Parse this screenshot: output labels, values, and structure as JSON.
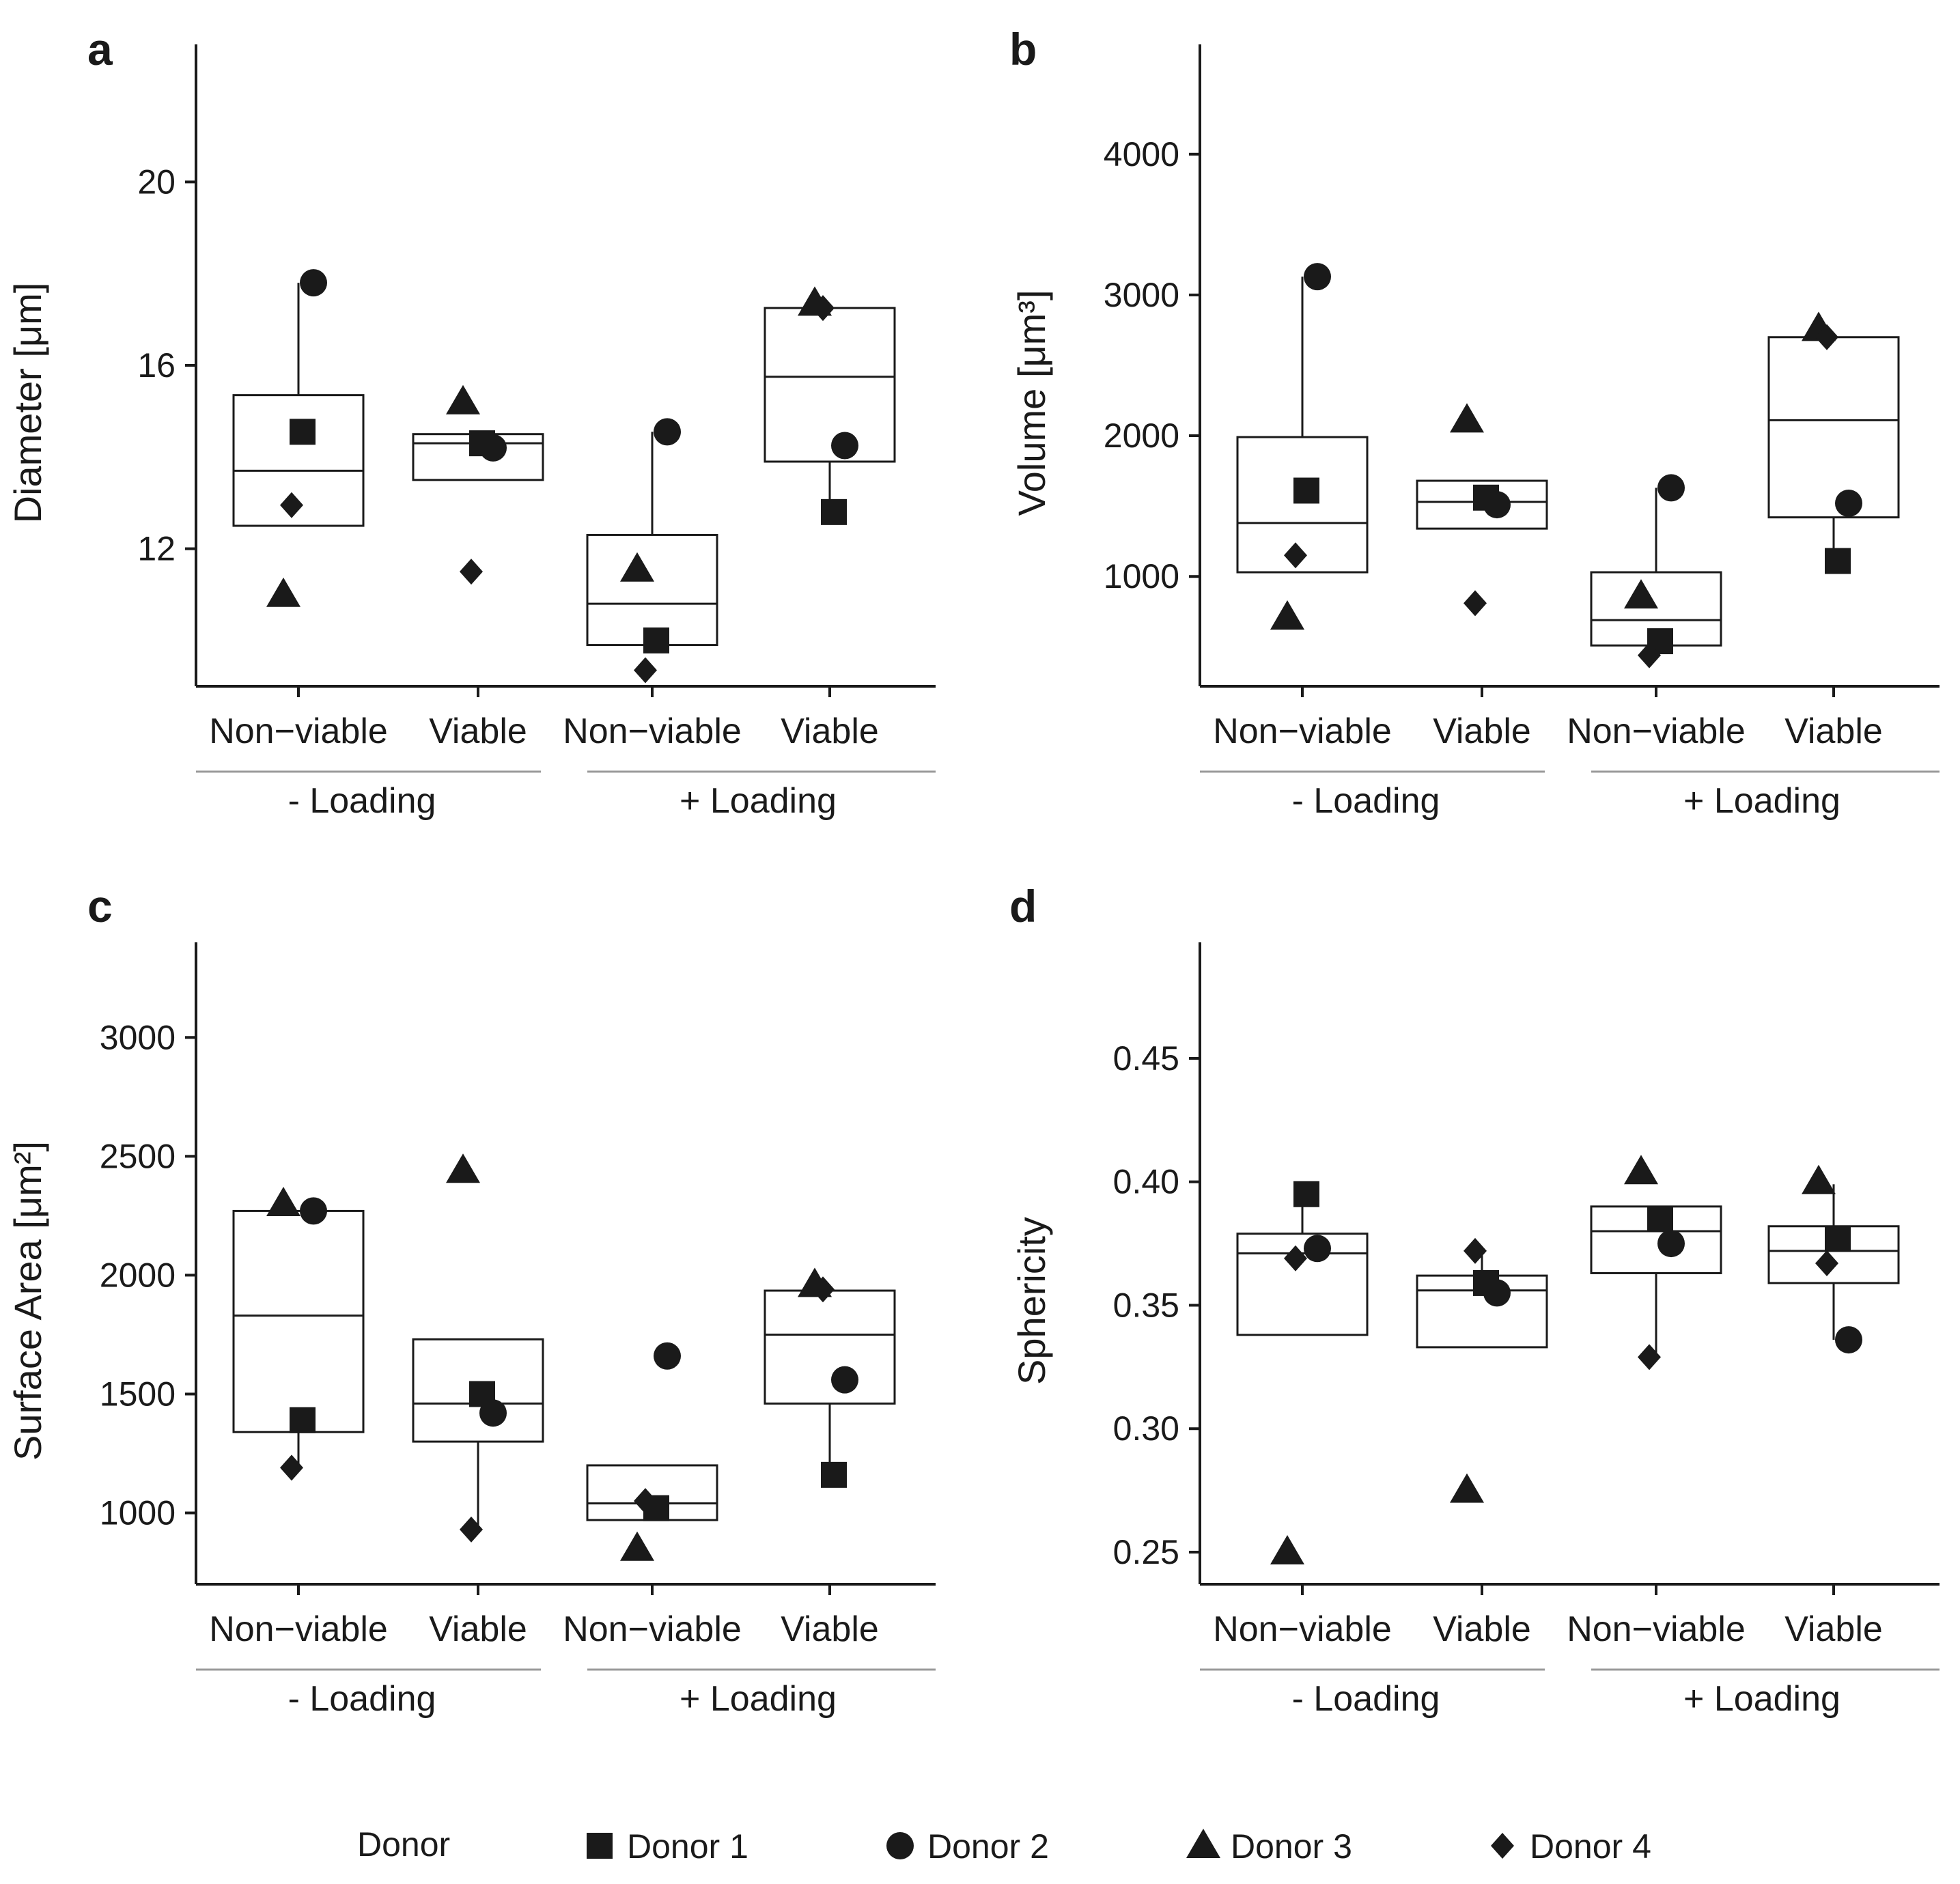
{
  "figure": {
    "legend": {
      "title": "Donor",
      "entries": [
        {
          "name": "Donor 1",
          "shape": "square"
        },
        {
          "name": "Donor 2",
          "shape": "circle"
        },
        {
          "name": "Donor 3",
          "shape": "triangle"
        },
        {
          "name": "Donor 4",
          "shape": "diamond"
        }
      ]
    }
  },
  "chart_data": [
    {
      "panel": "a",
      "type": "box",
      "ylabel": "Diameter [μm]",
      "ylim": [
        9.0,
        23.0
      ],
      "yticks": [
        12,
        16,
        20
      ],
      "categories": [
        "Non−viable",
        "Viable",
        "Non−viable",
        "Viable"
      ],
      "groups": [
        {
          "label": "- Loading",
          "span": [
            0,
            1
          ]
        },
        {
          "label": "+ Loading",
          "span": [
            2,
            3
          ]
        }
      ],
      "boxes": [
        {
          "q1": 12.5,
          "median": 13.7,
          "q3": 15.35,
          "whisker_low": 12.5,
          "whisker_high": 17.8
        },
        {
          "q1": 13.5,
          "median": 14.3,
          "q3": 14.5,
          "whisker_low": 13.5,
          "whisker_high": 14.5
        },
        {
          "q1": 9.9,
          "median": 10.8,
          "q3": 12.3,
          "whisker_low": 9.9,
          "whisker_high": 14.55
        },
        {
          "q1": 13.9,
          "median": 15.75,
          "q3": 17.25,
          "whisker_low": 12.8,
          "whisker_high": 17.25
        }
      ],
      "points": [
        [
          {
            "donor": "Donor 1",
            "value": 14.55
          },
          {
            "donor": "Donor 2",
            "value": 17.8
          },
          {
            "donor": "Donor 3",
            "value": 11.0
          },
          {
            "donor": "Donor 4",
            "value": 12.95
          }
        ],
        [
          {
            "donor": "Donor 1",
            "value": 14.3
          },
          {
            "donor": "Donor 2",
            "value": 14.2
          },
          {
            "donor": "Donor 3",
            "value": 15.2
          },
          {
            "donor": "Donor 4",
            "value": 11.5
          }
        ],
        [
          {
            "donor": "Donor 1",
            "value": 10.0
          },
          {
            "donor": "Donor 2",
            "value": 14.55
          },
          {
            "donor": "Donor 3",
            "value": 11.55
          },
          {
            "donor": "Donor 4",
            "value": 9.35
          }
        ],
        [
          {
            "donor": "Donor 1",
            "value": 12.8
          },
          {
            "donor": "Donor 2",
            "value": 14.25
          },
          {
            "donor": "Donor 3",
            "value": 17.35
          },
          {
            "donor": "Donor 4",
            "value": 17.25
          }
        ]
      ]
    },
    {
      "panel": "b",
      "type": "box",
      "ylabel": "Volume [μm³]",
      "ylim": [
        220,
        4780
      ],
      "yticks": [
        1000,
        2000,
        3000,
        4000
      ],
      "categories": [
        "Non−viable",
        "Viable",
        "Non−viable",
        "Viable"
      ],
      "groups": [
        {
          "label": "- Loading",
          "span": [
            0,
            1
          ]
        },
        {
          "label": "+ Loading",
          "span": [
            2,
            3
          ]
        }
      ],
      "boxes": [
        {
          "q1": 1030,
          "median": 1380,
          "q3": 1990,
          "whisker_low": 1030,
          "whisker_high": 3130
        },
        {
          "q1": 1340,
          "median": 1530,
          "q3": 1680,
          "whisker_low": 1340,
          "whisker_high": 1680
        },
        {
          "q1": 510,
          "median": 690,
          "q3": 1030,
          "whisker_low": 510,
          "whisker_high": 1630
        },
        {
          "q1": 1420,
          "median": 2110,
          "q3": 2700,
          "whisker_low": 1110,
          "whisker_high": 2700
        }
      ],
      "points": [
        [
          {
            "donor": "Donor 1",
            "value": 1610
          },
          {
            "donor": "Donor 2",
            "value": 3130
          },
          {
            "donor": "Donor 3",
            "value": 710
          },
          {
            "donor": "Donor 4",
            "value": 1150
          }
        ],
        [
          {
            "donor": "Donor 1",
            "value": 1560
          },
          {
            "donor": "Donor 2",
            "value": 1510
          },
          {
            "donor": "Donor 3",
            "value": 2110
          },
          {
            "donor": "Donor 4",
            "value": 810
          }
        ],
        [
          {
            "donor": "Donor 1",
            "value": 540
          },
          {
            "donor": "Donor 2",
            "value": 1630
          },
          {
            "donor": "Donor 3",
            "value": 860
          },
          {
            "donor": "Donor 4",
            "value": 440
          }
        ],
        [
          {
            "donor": "Donor 1",
            "value": 1110
          },
          {
            "donor": "Donor 2",
            "value": 1520
          },
          {
            "donor": "Donor 3",
            "value": 2760
          },
          {
            "donor": "Donor 4",
            "value": 2700
          }
        ]
      ]
    },
    {
      "panel": "c",
      "type": "box",
      "ylabel": "Surface Area [μm²]",
      "ylim": [
        700,
        3400
      ],
      "yticks": [
        1000,
        1500,
        2000,
        2500,
        3000
      ],
      "categories": [
        "Non−viable",
        "Viable",
        "Non−viable",
        "Viable"
      ],
      "groups": [
        {
          "label": "- Loading",
          "span": [
            0,
            1
          ]
        },
        {
          "label": "+ Loading",
          "span": [
            2,
            3
          ]
        }
      ],
      "boxes": [
        {
          "q1": 1340,
          "median": 1830,
          "q3": 2270,
          "whisker_low": 1190,
          "whisker_high": 2270
        },
        {
          "q1": 1300,
          "median": 1460,
          "q3": 1730,
          "whisker_low": 930,
          "whisker_high": 1730
        },
        {
          "q1": 970,
          "median": 1040,
          "q3": 1200,
          "whisker_low": 970,
          "whisker_high": 1200
        },
        {
          "q1": 1460,
          "median": 1750,
          "q3": 1935,
          "whisker_low": 1160,
          "whisker_high": 1935
        }
      ],
      "points": [
        [
          {
            "donor": "Donor 1",
            "value": 1390
          },
          {
            "donor": "Donor 2",
            "value": 2270
          },
          {
            "donor": "Donor 3",
            "value": 2300
          },
          {
            "donor": "Donor 4",
            "value": 1190
          }
        ],
        [
          {
            "donor": "Donor 1",
            "value": 1500
          },
          {
            "donor": "Donor 2",
            "value": 1420
          },
          {
            "donor": "Donor 3",
            "value": 2440
          },
          {
            "donor": "Donor 4",
            "value": 930
          }
        ],
        [
          {
            "donor": "Donor 1",
            "value": 1020
          },
          {
            "donor": "Donor 2",
            "value": 1660
          },
          {
            "donor": "Donor 3",
            "value": 850
          },
          {
            "donor": "Donor 4",
            "value": 1050
          }
        ],
        [
          {
            "donor": "Donor 1",
            "value": 1160
          },
          {
            "donor": "Donor 2",
            "value": 1560
          },
          {
            "donor": "Donor 3",
            "value": 1960
          },
          {
            "donor": "Donor 4",
            "value": 1940
          }
        ]
      ]
    },
    {
      "panel": "d",
      "type": "box",
      "ylabel": "Sphericity",
      "ylim": [
        0.237,
        0.497
      ],
      "yticks": [
        0.25,
        0.3,
        0.35,
        0.4,
        0.45
      ],
      "ytick_labels": [
        "0.25",
        "0.30",
        "0.35",
        "0.40",
        "0.45"
      ],
      "categories": [
        "Non−viable",
        "Viable",
        "Non−viable",
        "Viable"
      ],
      "groups": [
        {
          "label": "- Loading",
          "span": [
            0,
            1
          ]
        },
        {
          "label": "+ Loading",
          "span": [
            2,
            3
          ]
        }
      ],
      "boxes": [
        {
          "q1": 0.338,
          "median": 0.371,
          "q3": 0.379,
          "whisker_low": 0.338,
          "whisker_high": 0.395
        },
        {
          "q1": 0.333,
          "median": 0.356,
          "q3": 0.362,
          "whisker_low": 0.333,
          "whisker_high": 0.372
        },
        {
          "q1": 0.363,
          "median": 0.38,
          "q3": 0.39,
          "whisker_low": 0.329,
          "whisker_high": 0.39
        },
        {
          "q1": 0.359,
          "median": 0.372,
          "q3": 0.382,
          "whisker_low": 0.336,
          "whisker_high": 0.399
        }
      ],
      "points": [
        [
          {
            "donor": "Donor 1",
            "value": 0.395
          },
          {
            "donor": "Donor 2",
            "value": 0.373
          },
          {
            "donor": "Donor 3",
            "value": 0.25
          },
          {
            "donor": "Donor 4",
            "value": 0.369
          }
        ],
        [
          {
            "donor": "Donor 1",
            "value": 0.359
          },
          {
            "donor": "Donor 2",
            "value": 0.355
          },
          {
            "donor": "Donor 3",
            "value": 0.275
          },
          {
            "donor": "Donor 4",
            "value": 0.372
          }
        ],
        [
          {
            "donor": "Donor 1",
            "value": 0.385
          },
          {
            "donor": "Donor 2",
            "value": 0.375
          },
          {
            "donor": "Donor 3",
            "value": 0.404
          },
          {
            "donor": "Donor 4",
            "value": 0.329
          }
        ],
        [
          {
            "donor": "Donor 1",
            "value": 0.377
          },
          {
            "donor": "Donor 2",
            "value": 0.336
          },
          {
            "donor": "Donor 3",
            "value": 0.4
          },
          {
            "donor": "Donor 4",
            "value": 0.367
          }
        ]
      ]
    }
  ]
}
